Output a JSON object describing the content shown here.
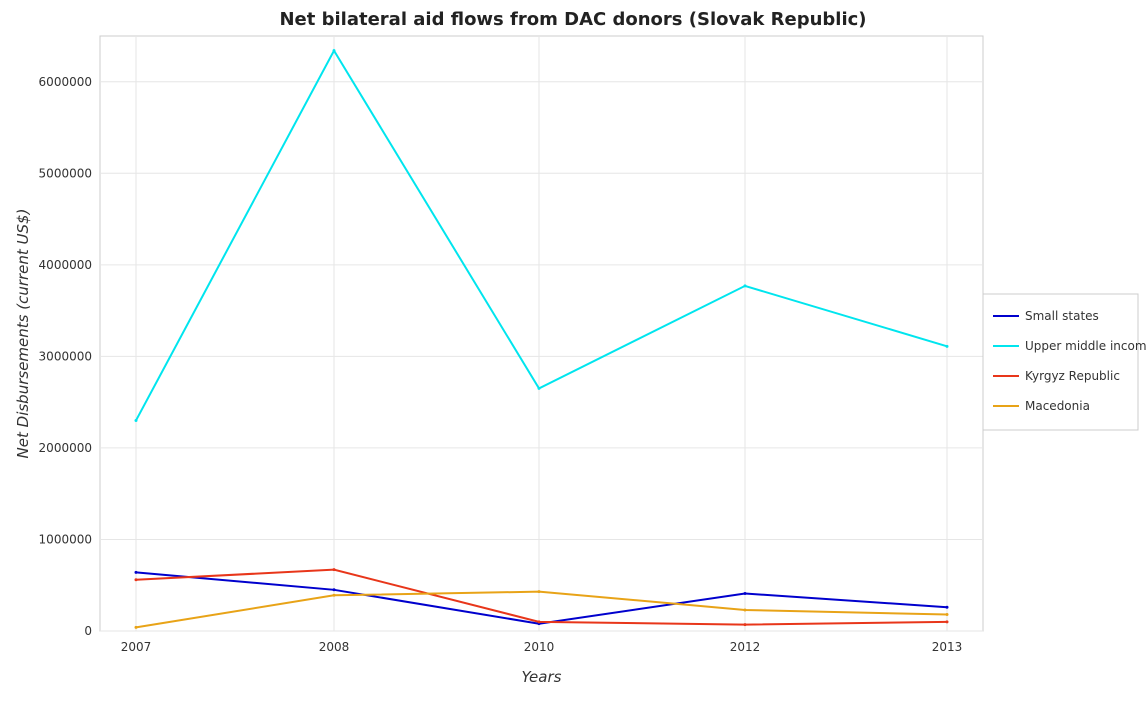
{
  "chart_data": {
    "type": "line",
    "title": "Net bilateral aid flows from DAC donors (Slovak Republic)",
    "xlabel": "Years",
    "ylabel": "Net Disbursements (current US$)",
    "categories": [
      "2007",
      "2008",
      "2010",
      "2012",
      "2013"
    ],
    "ylim": [
      0,
      6500000
    ],
    "yticks": [
      0,
      1000000,
      2000000,
      3000000,
      4000000,
      5000000,
      6000000
    ],
    "ytick_labels": [
      "0",
      "1000000",
      "2000000",
      "3000000",
      "4000000",
      "5000000",
      "6000000"
    ],
    "grid": true,
    "legend_position": "right",
    "series": [
      {
        "name": "Small states",
        "color": "#0000cd",
        "values": [
          640000,
          450000,
          80000,
          410000,
          260000
        ]
      },
      {
        "name": "Upper middle income",
        "color": "#00e5ee",
        "values": [
          2300000,
          6340000,
          2650000,
          3770000,
          3110000
        ]
      },
      {
        "name": "Kyrgyz Republic",
        "color": "#e8361a",
        "values": [
          560000,
          670000,
          100000,
          70000,
          100000
        ]
      },
      {
        "name": "Macedonia",
        "color": "#e8a317",
        "values": [
          40000,
          390000,
          430000,
          230000,
          180000
        ]
      }
    ]
  }
}
